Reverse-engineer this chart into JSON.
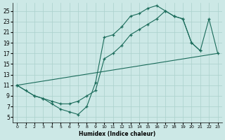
{
  "xlabel": "Humidex (Indice chaleur)",
  "bg_color": "#cce8e6",
  "grid_color": "#aad0cc",
  "line_color": "#1a6b5a",
  "ylim": [
    4,
    26.5
  ],
  "xlim": [
    -0.5,
    23.5
  ],
  "yticks": [
    5,
    7,
    9,
    11,
    13,
    15,
    17,
    19,
    21,
    23,
    25
  ],
  "xticks": [
    0,
    1,
    2,
    3,
    4,
    5,
    6,
    7,
    8,
    9,
    10,
    11,
    12,
    13,
    14,
    15,
    16,
    17,
    18,
    19,
    20,
    21,
    22,
    23
  ],
  "wavy_x": [
    0,
    1,
    2,
    3,
    4,
    5,
    6,
    7,
    8,
    9,
    10,
    11,
    12,
    13,
    14,
    15,
    16,
    17,
    18,
    19,
    20,
    21
  ],
  "wavy_y": [
    11,
    10,
    9,
    8.5,
    7.5,
    6.5,
    6,
    5.5,
    7,
    11.5,
    20,
    20.5,
    22,
    24,
    24.5,
    25.5,
    26,
    25,
    24,
    23.5,
    19,
    17.5
  ],
  "smooth_x": [
    0,
    2,
    3,
    4,
    5,
    6,
    7,
    8,
    9,
    10,
    11,
    12,
    13,
    14,
    15,
    16,
    17,
    18,
    19,
    20,
    21,
    22,
    23
  ],
  "smooth_y": [
    11,
    9,
    8.5,
    8,
    7.5,
    7.5,
    8,
    9,
    10,
    16,
    17,
    18.5,
    20.5,
    21.5,
    22.5,
    23.5,
    25,
    24,
    23.5,
    19,
    17.5,
    23.5,
    17
  ],
  "line_x": [
    0,
    23
  ],
  "line_y": [
    11,
    17
  ]
}
